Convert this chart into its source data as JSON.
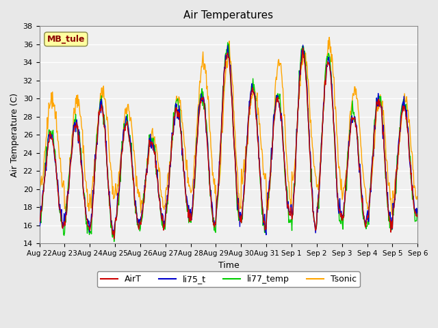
{
  "title": "Air Temperatures",
  "xlabel": "Time",
  "ylabel": "Air Temperature (C)",
  "annotation_text": "MB_tule",
  "annotation_color": "#8B0000",
  "annotation_bg": "#FFFFA0",
  "ylim": [
    14,
    38
  ],
  "yticks": [
    14,
    16,
    18,
    20,
    22,
    24,
    26,
    28,
    30,
    32,
    34,
    36,
    38
  ],
  "xtick_labels": [
    "Aug 22",
    "Aug 23",
    "Aug 24",
    "Aug 25",
    "Aug 26",
    "Aug 27",
    "Aug 28",
    "Aug 29",
    "Aug 30",
    "Aug 31",
    "Sep 1",
    "Sep 2",
    "Sep 3",
    "Sep 4",
    "Sep 5",
    "Sep 6"
  ],
  "colors": {
    "AirT": "#CC0000",
    "li75_t": "#0000CC",
    "li77_temp": "#00CC00",
    "Tsonic": "#FFA500"
  },
  "legend_labels": [
    "AirT",
    "li75_t",
    "li77_temp",
    "Tsonic"
  ],
  "bg_color": "#E8E8E8",
  "plot_bg": "#F0F0F0",
  "grid_color": "#FFFFFF",
  "num_days": 15,
  "points_per_day": 48
}
